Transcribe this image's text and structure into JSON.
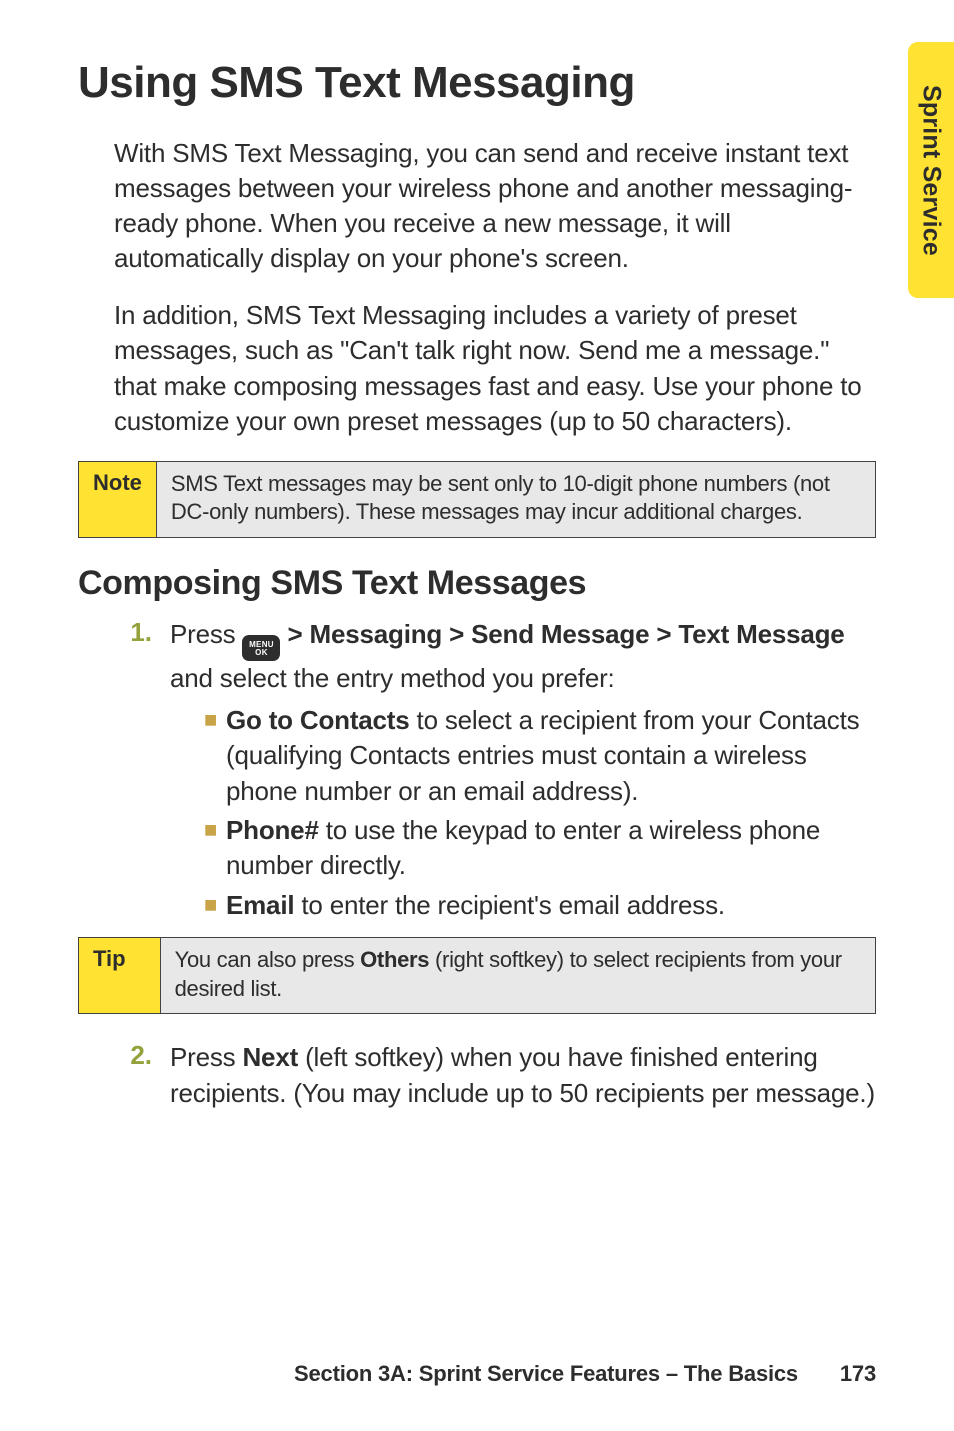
{
  "sideTab": {
    "label": "Sprint Service"
  },
  "title": "Using SMS Text Messaging",
  "para1": "With SMS Text Messaging, you can send and receive instant text messages between your wireless phone and another messaging-ready phone. When you receive a new message, it will automatically display on your phone's screen.",
  "para2": "In addition, SMS Text Messaging includes a variety of preset messages, such as \"Can't talk right now. Send me a message.\" that make composing messages fast and easy. Use your phone to customize your own preset messages (up to 50 characters).",
  "note": {
    "label": "Note",
    "body": "SMS Text messages may be sent only to 10-digit phone numbers (not DC-only numbers). These messages may incur additional charges."
  },
  "subheading": "Composing SMS Text Messages",
  "step1": {
    "num": "1.",
    "pre": "Press ",
    "menuKeyTop": "MENU",
    "menuKeyBot": "OK",
    "navPath": " > Messaging > Send Message > Text Message",
    "post": " and select the entry method you prefer:"
  },
  "bullets": {
    "b1": {
      "lead": "Go to Contacts",
      "rest": " to select a recipient from your Contacts (qualifying Contacts entries must contain a wireless phone number or an email address)."
    },
    "b2": {
      "lead": "Phone#",
      "rest": " to use the keypad to enter a wireless phone number directly."
    },
    "b3": {
      "lead": "Email",
      "rest": " to enter the recipient's email address."
    }
  },
  "tip": {
    "label": "Tip",
    "pre": "You can also press ",
    "bold": "Others",
    "post": " (right softkey) to select recipients from your desired list."
  },
  "step2": {
    "num": "2.",
    "pre": "Press ",
    "bold": "Next",
    "post": " (left softkey) when you have finished entering recipients. (You may include up to 50 recipients per message.)"
  },
  "footer": {
    "section": "Section 3A: Sprint Service Features – The Basics",
    "page": "173"
  }
}
